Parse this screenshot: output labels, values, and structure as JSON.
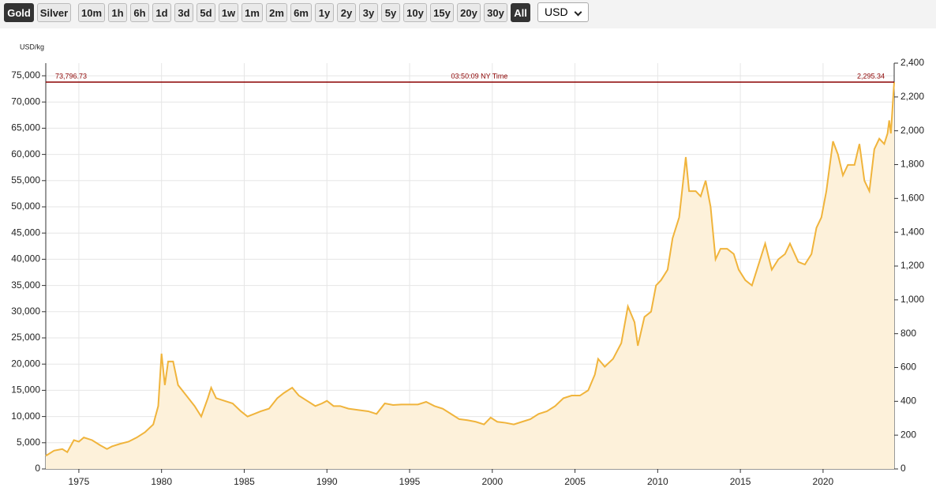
{
  "toolbar": {
    "metals": [
      "Gold",
      "Silver"
    ],
    "active_metal": "Gold",
    "ranges": [
      "10m",
      "1h",
      "6h",
      "1d",
      "3d",
      "5d",
      "1w",
      "1m",
      "2m",
      "6m",
      "1y",
      "2y",
      "3y",
      "5y",
      "10y",
      "15y",
      "20y",
      "30y",
      "All"
    ],
    "active_range": "All",
    "currency": "USD"
  },
  "chart_data": {
    "type": "line",
    "y_label": "USD/kg",
    "color": "#f0b43c",
    "fill": "#fdf1da",
    "grid": true,
    "reference": {
      "left": {
        "value": 73796.73,
        "label": "73,796.73"
      },
      "right": {
        "value": 2295.34,
        "label": "2,295.34"
      },
      "time": "03:50:09 NY Time"
    },
    "xlim": [
      1973,
      2024.3
    ],
    "xticks": [
      1975,
      1980,
      1985,
      1990,
      1995,
      2000,
      2005,
      2010,
      2015,
      2020
    ],
    "ylim": [
      0,
      77410
    ],
    "yticks": [
      0,
      {
        "value": 5000,
        "label": "5,000"
      },
      {
        "value": 10000,
        "label": "10,000"
      },
      {
        "value": 15000,
        "label": "15,000"
      },
      {
        "value": 20000,
        "label": "20,000"
      },
      {
        "value": 25000,
        "label": "25,000"
      },
      {
        "value": 30000,
        "label": "30,000"
      },
      {
        "value": 35000,
        "label": "35,000"
      },
      {
        "value": 40000,
        "label": "40,000"
      },
      {
        "value": 45000,
        "label": "45,000"
      },
      {
        "value": 50000,
        "label": "50,000"
      },
      {
        "value": 55000,
        "label": "55,000"
      },
      {
        "value": 60000,
        "label": "60,000"
      },
      {
        "value": 65000,
        "label": "65,000"
      },
      {
        "value": 70000,
        "label": "70,000"
      },
      {
        "value": 75000,
        "label": "75,000"
      }
    ],
    "y2lim": [
      0,
      2400
    ],
    "y2ticks": [
      0,
      200,
      400,
      600,
      800,
      {
        "value": 1000,
        "label": "1,000"
      },
      {
        "value": 1200,
        "label": "1,200"
      },
      {
        "value": 1400,
        "label": "1,400"
      },
      {
        "value": 1600,
        "label": "1,600"
      },
      {
        "value": 1800,
        "label": "1,800"
      },
      {
        "value": 2000,
        "label": "2,000"
      },
      {
        "value": 2200,
        "label": "2,200"
      },
      {
        "value": 2400,
        "label": "2,400"
      }
    ],
    "x": [
      1973.0,
      1973.5,
      1974.0,
      1974.3,
      1974.7,
      1975.0,
      1975.3,
      1975.8,
      1976.3,
      1976.7,
      1977.0,
      1977.5,
      1978.0,
      1978.5,
      1979.0,
      1979.5,
      1979.8,
      1980.0,
      1980.2,
      1980.4,
      1980.7,
      1981.0,
      1981.5,
      1982.0,
      1982.4,
      1982.8,
      1983.0,
      1983.3,
      1983.8,
      1984.3,
      1984.8,
      1985.2,
      1985.6,
      1986.0,
      1986.5,
      1987.0,
      1987.4,
      1987.9,
      1988.3,
      1988.8,
      1989.3,
      1989.7,
      1990.0,
      1990.4,
      1990.8,
      1991.3,
      1992.0,
      1992.5,
      1993.0,
      1993.5,
      1994.0,
      1994.5,
      1995.0,
      1995.5,
      1996.0,
      1996.5,
      1997.0,
      1997.5,
      1998.0,
      1998.5,
      1999.0,
      1999.5,
      1999.9,
      2000.3,
      2000.8,
      2001.3,
      2001.8,
      2002.3,
      2002.8,
      2003.3,
      2003.8,
      2004.3,
      2004.8,
      2005.3,
      2005.8,
      2006.2,
      2006.4,
      2006.8,
      2007.3,
      2007.8,
      2008.2,
      2008.6,
      2008.8,
      2009.2,
      2009.6,
      2009.9,
      2010.2,
      2010.6,
      2010.9,
      2011.3,
      2011.7,
      2011.9,
      2012.3,
      2012.6,
      2012.9,
      2013.2,
      2013.5,
      2013.8,
      2014.2,
      2014.6,
      2014.9,
      2015.3,
      2015.7,
      2016.0,
      2016.5,
      2016.9,
      2017.3,
      2017.7,
      2018.0,
      2018.5,
      2018.9,
      2019.3,
      2019.6,
      2019.9,
      2020.2,
      2020.6,
      2020.9,
      2021.2,
      2021.5,
      2021.9,
      2022.2,
      2022.5,
      2022.8,
      2023.1,
      2023.4,
      2023.7,
      2023.9,
      2024.0,
      2024.1,
      2024.3
    ],
    "series": [
      {
        "name": "Gold",
        "color": "#f0b43c",
        "values": [
          2500,
          3500,
          3800,
          3200,
          5500,
          5200,
          6000,
          5500,
          4500,
          3800,
          4300,
          4800,
          5200,
          6000,
          7000,
          8500,
          12000,
          22000,
          16000,
          20500,
          20500,
          16000,
          14000,
          12000,
          10000,
          13500,
          15500,
          13500,
          13000,
          12500,
          11000,
          10000,
          10500,
          11000,
          11500,
          13500,
          14500,
          15500,
          14000,
          13000,
          12000,
          12500,
          13000,
          12000,
          12000,
          11500,
          11200,
          11000,
          10500,
          12500,
          12200,
          12300,
          12300,
          12300,
          12800,
          12000,
          11500,
          10500,
          9500,
          9300,
          9000,
          8500,
          9800,
          9000,
          8800,
          8500,
          9000,
          9500,
          10500,
          11000,
          12000,
          13500,
          14000,
          14000,
          15000,
          18000,
          21000,
          19500,
          21000,
          24000,
          31000,
          28000,
          23500,
          29000,
          30000,
          35000,
          36000,
          38000,
          44000,
          48000,
          59500,
          53000,
          53000,
          52000,
          55000,
          50000,
          40000,
          42000,
          42000,
          41000,
          38000,
          36000,
          35000,
          38000,
          43000,
          38000,
          40000,
          41000,
          43000,
          39500,
          39000,
          41000,
          46000,
          48000,
          53000,
          62500,
          60000,
          56000,
          58000,
          58000,
          62000,
          55000,
          53000,
          61000,
          63000,
          62000,
          64000,
          66500,
          64000,
          73796.73
        ]
      }
    ]
  }
}
